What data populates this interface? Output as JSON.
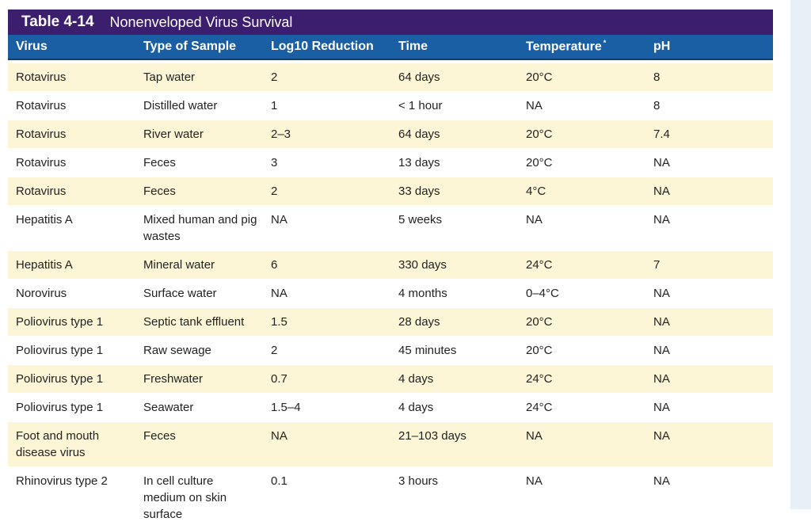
{
  "table": {
    "label": "Table 4-14",
    "title": "Nonenveloped Virus Survival",
    "columns": [
      "Virus",
      "Type of Sample",
      "Log10 Reduction",
      "Time",
      "Temperature",
      "pH"
    ],
    "temperature_footnote_mark": "*",
    "rows": [
      [
        "Rotavirus",
        "Tap water",
        "2",
        "64 days",
        "20°C",
        "8"
      ],
      [
        "Rotavirus",
        "Distilled water",
        "1",
        "< 1 hour",
        "NA",
        "8"
      ],
      [
        "Rotavirus",
        "River water",
        "2–3",
        "64 days",
        "20°C",
        "7.4"
      ],
      [
        "Rotavirus",
        "Feces",
        "3",
        "13 days",
        "20°C",
        "NA"
      ],
      [
        "Rotavirus",
        "Feces",
        "2",
        "33 days",
        "4°C",
        "NA"
      ],
      [
        "Hepatitis A",
        "Mixed human and pig wastes",
        "NA",
        "5 weeks",
        "NA",
        "NA"
      ],
      [
        "Hepatitis A",
        "Mineral water",
        "6",
        "330 days",
        "24°C",
        "7"
      ],
      [
        "Norovirus",
        "Surface water",
        "NA",
        "4 months",
        "0–4°C",
        "NA"
      ],
      [
        "Poliovirus type 1",
        "Septic tank effluent",
        "1.5",
        "28 days",
        "20°C",
        "NA"
      ],
      [
        "Poliovirus type 1",
        "Raw sewage",
        "2",
        "45 minutes",
        "20°C",
        "NA"
      ],
      [
        "Poliovirus type 1",
        "Freshwater",
        "0.7",
        "4 days",
        "24°C",
        "NA"
      ],
      [
        "Poliovirus type 1",
        "Seawater",
        "1.5–4",
        "4 days",
        "24°C",
        "NA"
      ],
      [
        "Foot and mouth disease virus",
        "Feces",
        "NA",
        "21–103 days",
        "NA",
        "NA"
      ],
      [
        "Rhinovirus type 2",
        "In cell culture medium on skin surface",
        "0.1",
        "3 hours",
        "NA",
        "NA"
      ]
    ]
  }
}
